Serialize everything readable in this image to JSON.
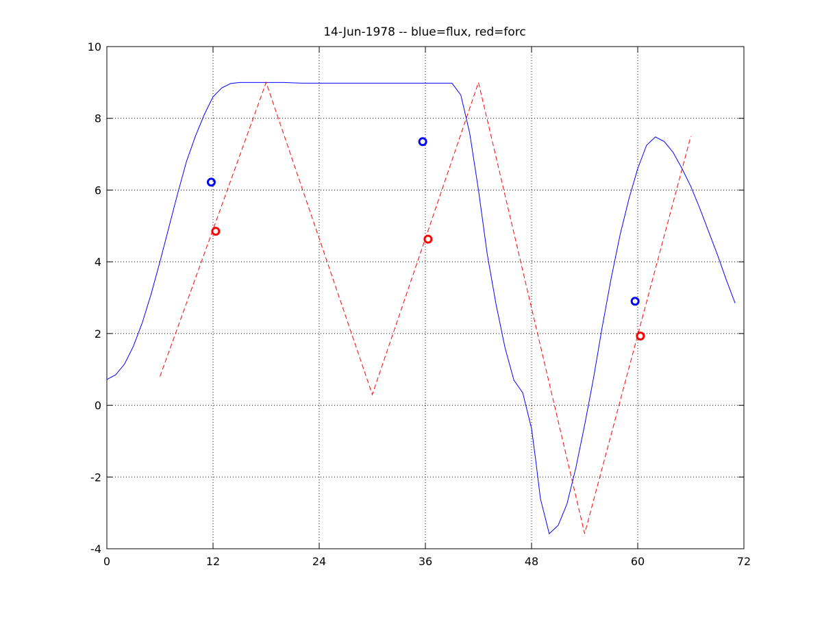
{
  "chart_data": {
    "type": "line",
    "title": "14-Jun-1978 -- blue=flux, red=forc",
    "xlabel": "",
    "ylabel": "",
    "xlim": [
      0,
      72
    ],
    "ylim": [
      -4,
      10
    ],
    "xticks": [
      0,
      12,
      24,
      36,
      48,
      60,
      72
    ],
    "yticks": [
      -4,
      -2,
      0,
      2,
      4,
      6,
      8,
      10
    ],
    "grid": true,
    "series": [
      {
        "key": "flux",
        "color": "#0000ff",
        "line_style": "solid",
        "x": [
          0,
          1,
          2,
          3,
          4,
          5,
          6,
          7,
          8,
          9,
          10,
          11,
          12,
          13,
          14,
          15,
          16,
          17,
          18,
          20,
          22,
          24,
          26,
          28,
          30,
          32,
          34,
          36,
          37,
          38,
          39,
          40,
          41,
          42,
          43,
          44,
          45,
          46,
          47,
          48,
          48.5,
          49,
          50,
          51,
          52,
          53,
          54,
          55,
          56,
          57,
          58,
          59,
          60,
          61,
          62,
          63,
          64,
          65,
          66,
          67,
          68,
          69,
          70,
          71
        ],
        "y": [
          0.72,
          0.85,
          1.15,
          1.65,
          2.3,
          3.1,
          4.0,
          4.95,
          5.9,
          6.8,
          7.5,
          8.1,
          8.6,
          8.85,
          8.97,
          9.0,
          9.0,
          9.0,
          9.0,
          9.0,
          8.98,
          8.98,
          8.98,
          8.98,
          8.98,
          8.98,
          8.98,
          8.98,
          8.98,
          8.98,
          8.98,
          8.65,
          7.6,
          6.0,
          4.2,
          2.8,
          1.6,
          0.7,
          0.35,
          -0.65,
          -1.6,
          -2.6,
          -3.58,
          -3.35,
          -2.75,
          -1.75,
          -0.55,
          0.75,
          2.2,
          3.55,
          4.75,
          5.75,
          6.6,
          7.25,
          7.48,
          7.35,
          7.05,
          6.6,
          6.1,
          5.5,
          4.85,
          4.2,
          3.5,
          2.85
        ]
      },
      {
        "key": "forc",
        "color": "#ff0000",
        "line_style": "dashed",
        "x": [
          6,
          18,
          30,
          42,
          54,
          66
        ],
        "y": [
          0.8,
          9.0,
          0.3,
          9.0,
          -3.58,
          7.5
        ]
      }
    ],
    "markers": [
      {
        "series": "flux",
        "color": "#0000ff",
        "x": [
          11.8,
          35.7,
          59.7
        ],
        "y": [
          6.22,
          7.35,
          2.9
        ]
      },
      {
        "series": "forc",
        "color": "#ff0000",
        "x": [
          12.3,
          36.3,
          60.3
        ],
        "y": [
          4.85,
          4.63,
          1.93
        ]
      }
    ]
  }
}
